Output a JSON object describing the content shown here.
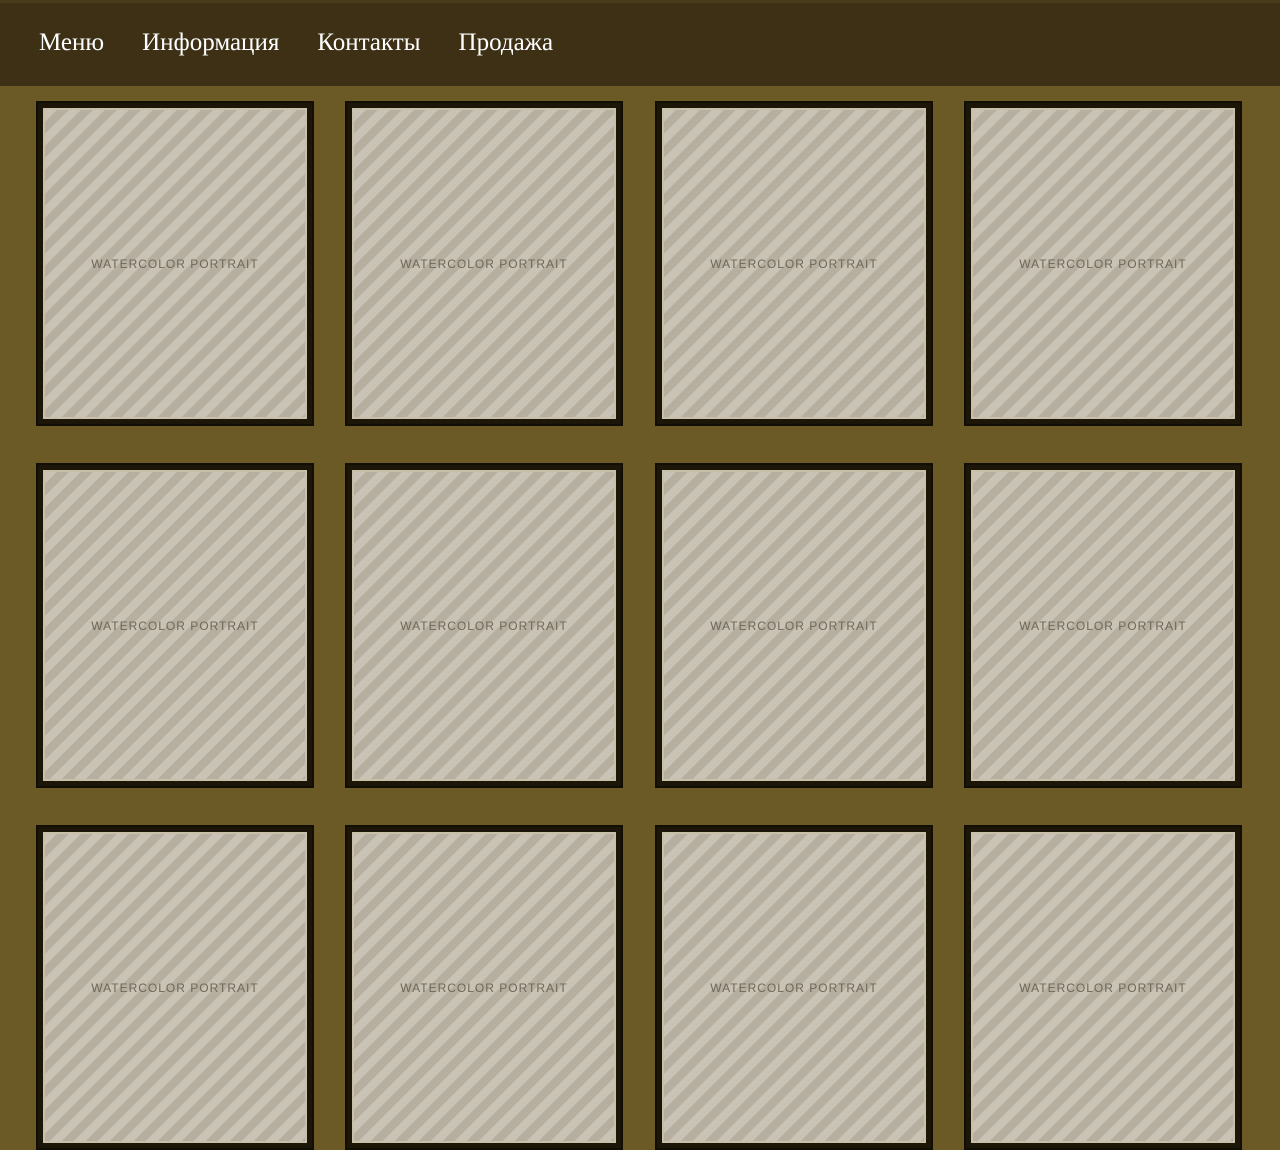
{
  "nav": {
    "items": [
      {
        "label": "Меню"
      },
      {
        "label": "Информация"
      },
      {
        "label": "Контакты"
      },
      {
        "label": "Продажа"
      }
    ]
  },
  "gallery": {
    "rows": [
      {
        "tiles": [
          {
            "alt": "watercolor portrait"
          },
          {
            "alt": "watercolor portrait"
          },
          {
            "alt": "watercolor portrait"
          },
          {
            "alt": "watercolor portrait"
          }
        ]
      },
      {
        "tiles": [
          {
            "alt": "watercolor portrait"
          },
          {
            "alt": "watercolor portrait"
          },
          {
            "alt": "watercolor portrait"
          },
          {
            "alt": "watercolor portrait"
          }
        ]
      },
      {
        "tiles": [
          {
            "alt": "watercolor portrait"
          },
          {
            "alt": "watercolor portrait"
          },
          {
            "alt": "watercolor portrait"
          },
          {
            "alt": "watercolor portrait"
          }
        ]
      }
    ]
  },
  "colors": {
    "page_background": "#6b5a26",
    "topbar_background": "#3d3015",
    "tile_frame": "#1c1608",
    "nav_text": "#ffffff"
  }
}
